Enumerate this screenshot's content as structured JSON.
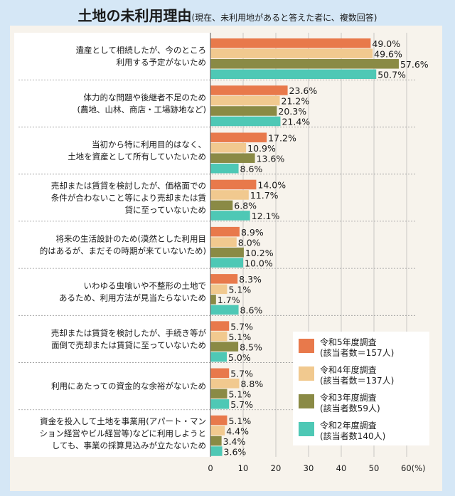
{
  "title": "土地の未利用理由",
  "subtitle": "(現在、未利用地があると答えた者に、複数回答)",
  "chart_data": {
    "type": "bar",
    "orientation": "horizontal",
    "categories": [
      [
        "遺産として相続したが、今のところ",
        "利用する予定がないため"
      ],
      [
        "体力的な問題や後継者不足のため",
        "(農地、山林、商店・工場跡地など)"
      ],
      [
        "当初から特に利用目的はなく、",
        "土地を資産として所有していたいため"
      ],
      [
        "売却または賃貸を検討したが、価格面での",
        "条件が合わないこと等により売却または賃",
        "貸に至っていないため"
      ],
      [
        "将来の生活設計のため(漠然とした利用目",
        "的はあるが、まだその時期が来ていないため)"
      ],
      [
        "いわゆる虫喰いや不整形の土地で",
        "あるため、利用方法が見当たらないため"
      ],
      [
        "売却または賃貸を検討したが、手続き等が",
        "面倒で売却または賃貸に至っていないため"
      ],
      [
        "利用にあたっての資金的な余裕がないため"
      ],
      [
        "資金を投入して土地を事業用(アパート・マン",
        "ション経営やビル経営等)などに利用しようと",
        "しても、事業の採算見込みが立たないため"
      ]
    ],
    "series": [
      {
        "name": "令和5年度調査",
        "note": "(該当者数＝157人)",
        "color": "#e8794b",
        "values": [
          49.0,
          23.6,
          17.2,
          14.0,
          8.9,
          8.3,
          5.7,
          5.7,
          5.1
        ]
      },
      {
        "name": "令和4年度調査",
        "note": "(該当者数＝137人)",
        "color": "#f1c98f",
        "values": [
          49.6,
          21.2,
          10.9,
          11.7,
          8.0,
          5.1,
          5.1,
          8.8,
          4.4
        ]
      },
      {
        "name": "令和3年度調査",
        "note": "(該当者数59人)",
        "color": "#8a8a45",
        "values": [
          57.6,
          20.3,
          13.6,
          6.8,
          10.2,
          1.7,
          8.5,
          5.1,
          3.4
        ]
      },
      {
        "name": "令和2年度調査",
        "note": "(該当者数140人)",
        "color": "#4ec8b5",
        "values": [
          50.7,
          21.4,
          8.6,
          12.1,
          10.0,
          8.6,
          5.0,
          5.7,
          3.6
        ]
      }
    ],
    "xlim": [
      0,
      60
    ],
    "xticks": [
      "0",
      "10",
      "20",
      "30",
      "40",
      "50",
      "60(%)"
    ],
    "legend_position": "bottom-right",
    "value_format": "%"
  }
}
